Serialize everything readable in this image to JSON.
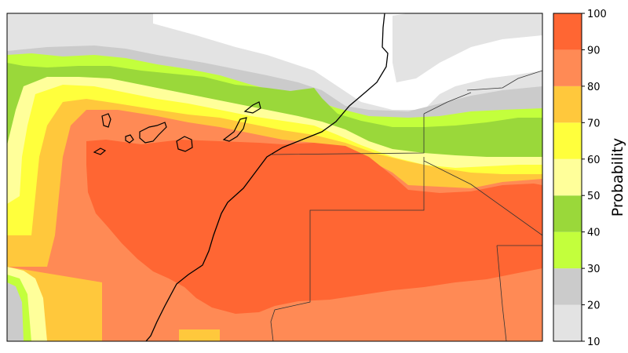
{
  "colorbar": {
    "title": "Probability",
    "tick_labels": [
      "10",
      "20",
      "30",
      "40",
      "50",
      "60",
      "70",
      "80",
      "90",
      "100"
    ],
    "bands": [
      {
        "from": 10,
        "to": 20,
        "color": "#e3e3e3"
      },
      {
        "from": 20,
        "to": 30,
        "color": "#cbcbcb"
      },
      {
        "from": 30,
        "to": 40,
        "color": "#c3ff3c"
      },
      {
        "from": 40,
        "to": 50,
        "color": "#9ad83a"
      },
      {
        "from": 50,
        "to": 60,
        "color": "#ffff9a"
      },
      {
        "from": 60,
        "to": 70,
        "color": "#ffff3c"
      },
      {
        "from": 70,
        "to": 80,
        "color": "#ffc83c"
      },
      {
        "from": 80,
        "to": 90,
        "color": "#ff8a55"
      },
      {
        "from": 90,
        "to": 100,
        "color": "#ff6633"
      }
    ]
  },
  "map": {
    "border_color": "#000000",
    "background_color": "#ffffff"
  }
}
